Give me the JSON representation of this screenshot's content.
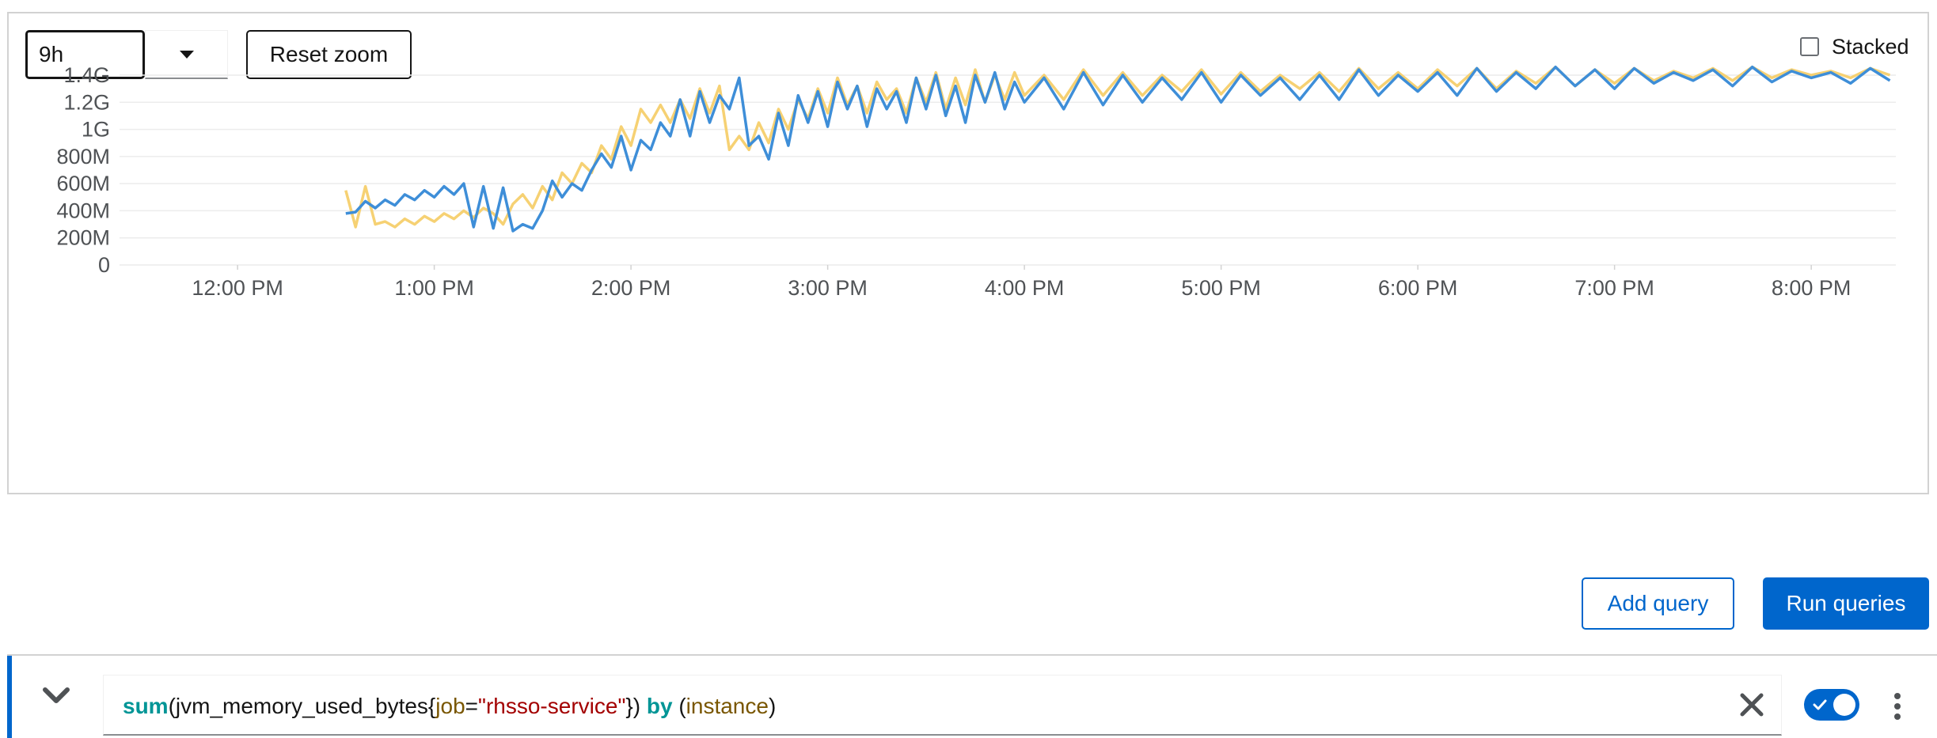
{
  "toolbar": {
    "timespan_value": "9h",
    "reset_zoom_label": "Reset zoom",
    "stacked_label": "Stacked",
    "stacked_checked": false
  },
  "actions": {
    "add_query_label": "Add query",
    "run_queries_label": "Run queries"
  },
  "query": {
    "tokens": [
      {
        "text": "sum",
        "kind": "fn"
      },
      {
        "text": "(jvm_memory_used_bytes{",
        "kind": "metric"
      },
      {
        "text": "job",
        "kind": "label"
      },
      {
        "text": "=",
        "kind": "metric"
      },
      {
        "text": "\"rhsso-service\"",
        "kind": "str"
      },
      {
        "text": "}) ",
        "kind": "metric"
      },
      {
        "text": "by",
        "kind": "kw"
      },
      {
        "text": " (",
        "kind": "metric"
      },
      {
        "text": "instance",
        "kind": "label"
      },
      {
        "text": ")",
        "kind": "metric"
      }
    ],
    "enabled": true
  },
  "colors": {
    "series_blue": "#3e8ed8",
    "series_yellow": "#f6d173",
    "accent": "#0066cc"
  },
  "icons": {
    "timespan_toggle": "caret-down-icon",
    "expand": "angle-down-icon",
    "clear": "times-icon",
    "kebab": "ellipsis-v-icon",
    "switch_check": "check-icon"
  },
  "chart_data": {
    "type": "line",
    "x_tick_labels": [
      "12:00 PM",
      "1:00 PM",
      "2:00 PM",
      "3:00 PM",
      "4:00 PM",
      "5:00 PM",
      "6:00 PM",
      "7:00 PM",
      "8:00 PM"
    ],
    "y_tick_labels": [
      "0",
      "200M",
      "400M",
      "600M",
      "800M",
      "1G",
      "1.2G",
      "1.4G"
    ],
    "y_tick_values": [
      0,
      0.2,
      0.4,
      0.6,
      0.8,
      1.0,
      1.2,
      1.4
    ],
    "ylim": [
      0,
      1.4
    ],
    "xlim_hours": [
      11.4,
      20.43
    ],
    "y_unit": "G",
    "grid": true,
    "series": [
      {
        "color_key": "series_blue",
        "x_hours": [
          12.55,
          12.6,
          12.65,
          12.7,
          12.75,
          12.8,
          12.85,
          12.9,
          12.95,
          13.0,
          13.05,
          13.1,
          13.15,
          13.2,
          13.25,
          13.3,
          13.35,
          13.4,
          13.45,
          13.5,
          13.55,
          13.6,
          13.65,
          13.7,
          13.75,
          13.8,
          13.85,
          13.9,
          13.95,
          14.0,
          14.05,
          14.1,
          14.15,
          14.2,
          14.25,
          14.3,
          14.35,
          14.4,
          14.45,
          14.5,
          14.55,
          14.6,
          14.65,
          14.7,
          14.75,
          14.8,
          14.85,
          14.9,
          14.95,
          15.0,
          15.05,
          15.1,
          15.15,
          15.2,
          15.25,
          15.3,
          15.35,
          15.4,
          15.45,
          15.5,
          15.55,
          15.6,
          15.65,
          15.7,
          15.75,
          15.8,
          15.85,
          15.9,
          15.95,
          16.0,
          16.1,
          16.2,
          16.3,
          16.4,
          16.5,
          16.6,
          16.7,
          16.8,
          16.9,
          17.0,
          17.1,
          17.2,
          17.3,
          17.4,
          17.5,
          17.6,
          17.7,
          17.8,
          17.9,
          18.0,
          18.1,
          18.2,
          18.3,
          18.4,
          18.5,
          18.6,
          18.7,
          18.8,
          18.9,
          19.0,
          19.1,
          19.2,
          19.3,
          19.4,
          19.5,
          19.6,
          19.7,
          19.8,
          19.9,
          20.0,
          20.1,
          20.2,
          20.3,
          20.4
        ],
        "values": [
          0.38,
          0.39,
          0.47,
          0.42,
          0.48,
          0.44,
          0.52,
          0.48,
          0.55,
          0.5,
          0.58,
          0.52,
          0.6,
          0.28,
          0.58,
          0.27,
          0.57,
          0.25,
          0.3,
          0.27,
          0.4,
          0.62,
          0.5,
          0.6,
          0.55,
          0.7,
          0.82,
          0.72,
          0.95,
          0.7,
          0.92,
          0.85,
          1.05,
          0.95,
          1.22,
          0.95,
          1.28,
          1.05,
          1.25,
          1.15,
          1.38,
          0.88,
          0.95,
          0.78,
          1.12,
          0.88,
          1.25,
          1.05,
          1.28,
          1.02,
          1.35,
          1.15,
          1.32,
          1.02,
          1.3,
          1.15,
          1.28,
          1.05,
          1.38,
          1.15,
          1.4,
          1.1,
          1.32,
          1.05,
          1.4,
          1.2,
          1.42,
          1.15,
          1.35,
          1.2,
          1.38,
          1.15,
          1.42,
          1.18,
          1.4,
          1.2,
          1.38,
          1.22,
          1.42,
          1.2,
          1.4,
          1.25,
          1.38,
          1.22,
          1.4,
          1.22,
          1.44,
          1.25,
          1.4,
          1.28,
          1.42,
          1.25,
          1.45,
          1.28,
          1.42,
          1.3,
          1.46,
          1.32,
          1.44,
          1.3,
          1.45,
          1.34,
          1.42,
          1.36,
          1.44,
          1.32,
          1.46,
          1.35,
          1.43,
          1.38,
          1.42,
          1.34,
          1.45,
          1.36
        ]
      },
      {
        "color_key": "series_yellow",
        "x_hours": [
          12.55,
          12.6,
          12.65,
          12.7,
          12.75,
          12.8,
          12.85,
          12.9,
          12.95,
          13.0,
          13.05,
          13.1,
          13.15,
          13.2,
          13.25,
          13.3,
          13.35,
          13.4,
          13.45,
          13.5,
          13.55,
          13.6,
          13.65,
          13.7,
          13.75,
          13.8,
          13.85,
          13.9,
          13.95,
          14.0,
          14.05,
          14.1,
          14.15,
          14.2,
          14.25,
          14.3,
          14.35,
          14.4,
          14.45,
          14.5,
          14.55,
          14.6,
          14.65,
          14.7,
          14.75,
          14.8,
          14.85,
          14.9,
          14.95,
          15.0,
          15.05,
          15.1,
          15.15,
          15.2,
          15.25,
          15.3,
          15.35,
          15.4,
          15.45,
          15.5,
          15.55,
          15.6,
          15.65,
          15.7,
          15.75,
          15.8,
          15.85,
          15.9,
          15.95,
          16.0,
          16.1,
          16.2,
          16.3,
          16.4,
          16.5,
          16.6,
          16.7,
          16.8,
          16.9,
          17.0,
          17.1,
          17.2,
          17.3,
          17.4,
          17.5,
          17.6,
          17.7,
          17.8,
          17.9,
          18.0,
          18.1,
          18.2,
          18.3,
          18.4,
          18.5,
          18.6,
          18.7,
          18.8,
          18.9,
          19.0,
          19.1,
          19.2,
          19.3,
          19.4,
          19.5,
          19.6,
          19.7,
          19.8,
          19.9,
          20.0,
          20.1,
          20.2,
          20.3,
          20.4
        ],
        "values": [
          0.55,
          0.28,
          0.58,
          0.3,
          0.32,
          0.28,
          0.34,
          0.3,
          0.36,
          0.32,
          0.38,
          0.34,
          0.4,
          0.35,
          0.42,
          0.38,
          0.3,
          0.45,
          0.52,
          0.42,
          0.58,
          0.48,
          0.68,
          0.6,
          0.75,
          0.68,
          0.88,
          0.78,
          1.02,
          0.88,
          1.15,
          1.05,
          1.18,
          1.05,
          1.22,
          1.08,
          1.3,
          1.12,
          1.32,
          0.85,
          0.95,
          0.85,
          1.05,
          0.9,
          1.15,
          1.0,
          1.22,
          1.08,
          1.3,
          1.12,
          1.38,
          1.18,
          1.32,
          1.12,
          1.35,
          1.22,
          1.3,
          1.12,
          1.38,
          1.2,
          1.42,
          1.15,
          1.38,
          1.18,
          1.44,
          1.2,
          1.4,
          1.22,
          1.42,
          1.25,
          1.4,
          1.22,
          1.44,
          1.25,
          1.42,
          1.25,
          1.4,
          1.28,
          1.44,
          1.26,
          1.42,
          1.28,
          1.4,
          1.3,
          1.42,
          1.28,
          1.45,
          1.3,
          1.42,
          1.3,
          1.44,
          1.32,
          1.45,
          1.3,
          1.43,
          1.34,
          1.46,
          1.32,
          1.44,
          1.34,
          1.45,
          1.36,
          1.43,
          1.38,
          1.45,
          1.36,
          1.46,
          1.38,
          1.44,
          1.4,
          1.43,
          1.38,
          1.45,
          1.4
        ]
      }
    ]
  }
}
